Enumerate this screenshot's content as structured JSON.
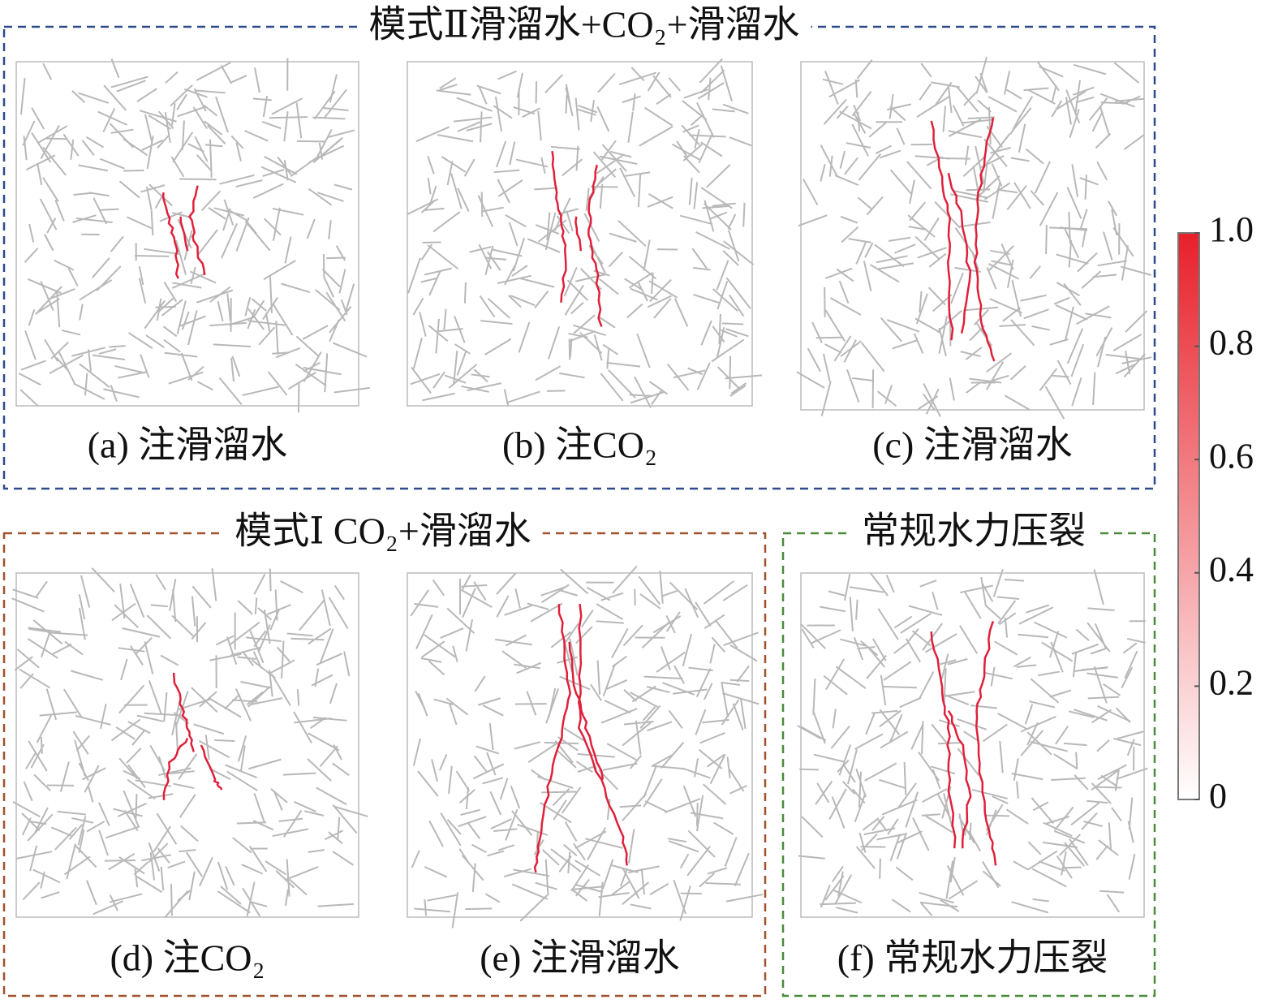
{
  "groups": [
    {
      "title": "模式Ⅱ滑溜水+CO₂+滑溜水",
      "panels": [
        {
          "caption": "(a) 注滑溜水"
        },
        {
          "caption": "(b) 注CO₂"
        },
        {
          "caption": "(c) 注滑溜水"
        }
      ]
    },
    {
      "title": "模式Ⅰ CO₂+滑溜水",
      "panels": [
        {
          "caption": "(d) 注CO₂"
        },
        {
          "caption": "(e) 注滑溜水"
        }
      ]
    },
    {
      "title": "常规水力压裂",
      "panels": [
        {
          "caption": "(f) 常规水力压裂"
        }
      ]
    }
  ],
  "colorbar": {
    "lim": [
      0,
      1
    ],
    "ticks": [
      0,
      0.2,
      0.4,
      0.6,
      0.8,
      {
        "value": 1,
        "label": "1.0"
      }
    ],
    "color_low": "#ffffff",
    "color_high": "#e8202a"
  }
}
